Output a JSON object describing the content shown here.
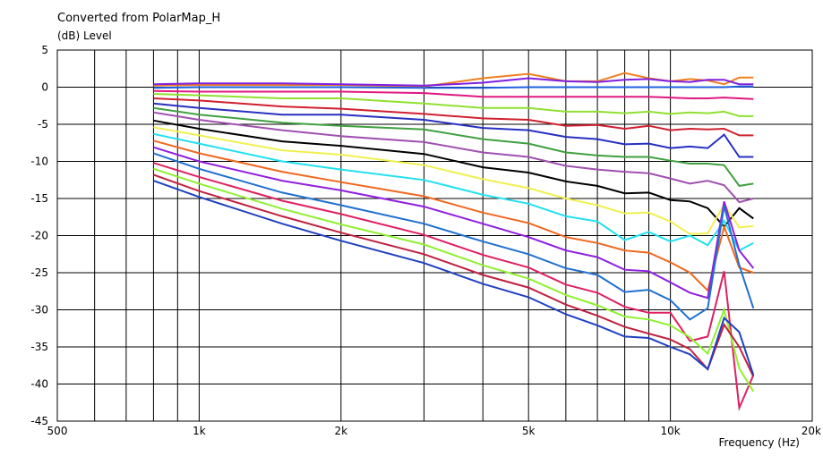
{
  "chart_data": {
    "type": "line",
    "title": "Converted from PolarMap_H",
    "ylabel": "(dB)  Level",
    "xlabel": "Frequency  (Hz)",
    "x_scale": "log",
    "xlim": [
      500,
      20000
    ],
    "ylim": [
      -45,
      5
    ],
    "grid": true,
    "x_ticks": [
      {
        "value": 500,
        "label": "500"
      },
      {
        "value": 1000,
        "label": "1k"
      },
      {
        "value": 2000,
        "label": "2k"
      },
      {
        "value": 5000,
        "label": "5k"
      },
      {
        "value": 10000,
        "label": "10k"
      },
      {
        "value": 20000,
        "label": "20k"
      }
    ],
    "x_minor_ticks": [
      600,
      700,
      800,
      900,
      3000,
      4000,
      6000,
      7000,
      8000,
      9000
    ],
    "y_ticks": [
      5,
      0,
      -5,
      -10,
      -15,
      -20,
      -25,
      -30,
      -35,
      -40,
      -45
    ],
    "series": [
      {
        "color": "#f08020",
        "x": [
          800,
          1000,
          1500,
          2000,
          3000,
          4000,
          5000,
          6000,
          7000,
          8000,
          9000,
          10000,
          11000,
          12000,
          13000,
          14000,
          15000
        ],
        "y": [
          0.2,
          0.3,
          0.3,
          0.3,
          0.1,
          1.2,
          1.8,
          0.8,
          0.8,
          1.9,
          1.2,
          0.8,
          1.1,
          0.9,
          0.4,
          1.3,
          1.3
        ]
      },
      {
        "color": "#8020e0",
        "x": [
          800,
          1000,
          1500,
          2000,
          3000,
          4000,
          5000,
          6000,
          7000,
          8000,
          9000,
          10000,
          11000,
          12000,
          13000,
          14000,
          15000
        ],
        "y": [
          0.4,
          0.5,
          0.5,
          0.4,
          0.2,
          0.6,
          1.2,
          0.8,
          0.7,
          1.0,
          1.1,
          0.8,
          0.7,
          1.0,
          1.0,
          0.4,
          0.4
        ]
      },
      {
        "color": "#2060e0",
        "x": [
          800,
          1000,
          1500,
          2000,
          3000,
          4000,
          5000,
          6000,
          7000,
          8000,
          9000,
          10000,
          11000,
          12000,
          13000,
          14000,
          15000
        ],
        "y": [
          -0.1,
          0.0,
          0.0,
          0.0,
          -0.1,
          -0.1,
          0.0,
          0.0,
          0.0,
          0.0,
          0.0,
          0.0,
          0.0,
          0.0,
          0.0,
          0.1,
          0.1
        ]
      },
      {
        "color": "#e01880",
        "x": [
          800,
          1000,
          1500,
          2000,
          3000,
          4000,
          5000,
          6000,
          7000,
          8000,
          9000,
          10000,
          11000,
          12000,
          13000,
          14000,
          15000
        ],
        "y": [
          -0.5,
          -0.6,
          -0.6,
          -0.6,
          -0.8,
          -1.3,
          -1.3,
          -1.3,
          -1.3,
          -1.3,
          -1.3,
          -1.4,
          -1.5,
          -1.5,
          -1.4,
          -1.5,
          -1.6
        ]
      },
      {
        "color": "#90e030",
        "x": [
          800,
          1000,
          1500,
          2000,
          3000,
          4000,
          5000,
          6000,
          7000,
          8000,
          9000,
          10000,
          11000,
          12000,
          13000,
          14000,
          15000
        ],
        "y": [
          -0.9,
          -1.1,
          -1.5,
          -1.5,
          -2.2,
          -2.8,
          -2.8,
          -3.3,
          -3.3,
          -3.5,
          -3.3,
          -3.6,
          -3.4,
          -3.5,
          -3.3,
          -3.9,
          -3.9
        ]
      },
      {
        "color": "#d02030",
        "x": [
          800,
          1000,
          1500,
          2000,
          3000,
          4000,
          5000,
          6000,
          7000,
          8000,
          9000,
          10000,
          11000,
          12000,
          13000,
          14000,
          15000
        ],
        "y": [
          -1.5,
          -1.8,
          -2.6,
          -2.9,
          -3.6,
          -4.2,
          -4.4,
          -5.2,
          -5.1,
          -5.6,
          -5.2,
          -5.8,
          -5.6,
          -5.7,
          -5.6,
          -6.5,
          -6.5
        ]
      },
      {
        "color": "#2830c0",
        "x": [
          800,
          1000,
          1500,
          2000,
          3000,
          4000,
          5000,
          6000,
          7000,
          8000,
          9000,
          10000,
          11000,
          12000,
          13000,
          14000,
          15000
        ],
        "y": [
          -2.2,
          -2.8,
          -3.7,
          -3.7,
          -4.4,
          -5.5,
          -5.8,
          -6.7,
          -7.0,
          -7.7,
          -7.6,
          -8.2,
          -8.0,
          -8.2,
          -6.4,
          -9.4,
          -9.4
        ]
      },
      {
        "color": "#40a040",
        "x": [
          800,
          1000,
          1500,
          2000,
          3000,
          4000,
          5000,
          6000,
          7000,
          8000,
          9000,
          10000,
          11000,
          12000,
          13000,
          14000,
          15000
        ],
        "y": [
          -2.8,
          -3.7,
          -4.8,
          -5.2,
          -5.7,
          -7.0,
          -7.6,
          -8.8,
          -9.2,
          -9.4,
          -9.4,
          -9.9,
          -10.3,
          -10.3,
          -10.5,
          -13.3,
          -13.0
        ]
      },
      {
        "color": "#a050b0",
        "x": [
          800,
          1000,
          1500,
          2000,
          3000,
          4000,
          5000,
          6000,
          7000,
          8000,
          9000,
          10000,
          11000,
          12000,
          13000,
          14000,
          15000
        ],
        "y": [
          -3.4,
          -4.4,
          -5.8,
          -6.6,
          -7.4,
          -8.8,
          -9.4,
          -10.6,
          -11.1,
          -11.4,
          -11.6,
          -12.3,
          -13.0,
          -12.6,
          -13.2,
          -15.5,
          -15.0
        ]
      },
      {
        "color": "#000000",
        "x": [
          800,
          1000,
          1500,
          2000,
          3000,
          4000,
          5000,
          6000,
          7000,
          8000,
          9000,
          10000,
          11000,
          12000,
          13000,
          14000,
          15000
        ],
        "y": [
          -4.5,
          -5.6,
          -7.3,
          -7.9,
          -9.0,
          -10.8,
          -11.5,
          -12.7,
          -13.3,
          -14.3,
          -14.2,
          -15.2,
          -15.4,
          -16.3,
          -18.8,
          -16.3,
          -17.7
        ]
      },
      {
        "color": "#f0f050",
        "x": [
          800,
          1000,
          1500,
          2000,
          3000,
          4000,
          5000,
          6000,
          7000,
          8000,
          9000,
          10000,
          11000,
          12000,
          13000,
          14000,
          15000
        ],
        "y": [
          -5.4,
          -6.5,
          -8.5,
          -9.1,
          -10.5,
          -12.4,
          -13.6,
          -15.0,
          -15.9,
          -17.0,
          -16.9,
          -18.1,
          -19.8,
          -19.7,
          -15.8,
          -18.9,
          -18.7
        ]
      },
      {
        "color": "#20e0f0",
        "x": [
          800,
          1000,
          1500,
          2000,
          3000,
          4000,
          5000,
          6000,
          7000,
          8000,
          9000,
          10000,
          11000,
          12000,
          13000,
          14000,
          15000
        ],
        "y": [
          -6.3,
          -7.6,
          -10.0,
          -11.1,
          -12.5,
          -14.5,
          -15.7,
          -17.4,
          -18.1,
          -20.6,
          -19.5,
          -20.8,
          -20.0,
          -21.3,
          -18.0,
          -22.0,
          -21.0
        ]
      },
      {
        "color": "#f06820",
        "x": [
          800,
          1000,
          1500,
          2000,
          3000,
          4000,
          5000,
          6000,
          7000,
          8000,
          9000,
          10000,
          11000,
          12000,
          13000,
          14000,
          15000
        ],
        "y": [
          -7.2,
          -8.9,
          -11.4,
          -12.8,
          -14.7,
          -16.9,
          -18.3,
          -20.2,
          -21.0,
          -22.0,
          -22.3,
          -23.6,
          -25.0,
          -27.4,
          -18.8,
          -24.3,
          -25.0
        ]
      },
      {
        "color": "#9020e0",
        "x": [
          800,
          1000,
          1500,
          2000,
          3000,
          4000,
          5000,
          6000,
          7000,
          8000,
          9000,
          10000,
          11000,
          12000,
          13000,
          14000,
          15000
        ],
        "y": [
          -8.1,
          -10.0,
          -12.6,
          -13.9,
          -16.1,
          -18.4,
          -20.2,
          -22.0,
          -22.9,
          -24.6,
          -24.8,
          -26.3,
          -27.7,
          -28.4,
          -15.4,
          -22.0,
          -24.4
        ]
      },
      {
        "color": "#2070d0",
        "x": [
          800,
          1000,
          1500,
          2000,
          3000,
          4000,
          5000,
          6000,
          7000,
          8000,
          9000,
          10000,
          11000,
          12000,
          13000,
          14000,
          15000
        ],
        "y": [
          -8.9,
          -11.0,
          -14.2,
          -15.9,
          -18.4,
          -20.8,
          -22.5,
          -24.4,
          -25.3,
          -27.6,
          -27.3,
          -28.7,
          -31.3,
          -29.8,
          -16.0,
          -24.0,
          -29.8
        ]
      },
      {
        "color": "#e02060",
        "x": [
          800,
          1000,
          1500,
          2000,
          3000,
          4000,
          5000,
          6000,
          7000,
          8000,
          9000,
          10000,
          11000,
          12000,
          13000,
          14000,
          15000
        ],
        "y": [
          -10.2,
          -12.1,
          -15.3,
          -17.1,
          -19.9,
          -22.6,
          -24.3,
          -26.6,
          -27.7,
          -29.6,
          -30.4,
          -30.4,
          -34.2,
          -33.6,
          -24.8,
          -43.2,
          -38.8
        ]
      },
      {
        "color": "#90f030",
        "x": [
          800,
          1000,
          1500,
          2000,
          3000,
          4000,
          5000,
          6000,
          7000,
          8000,
          9000,
          10000,
          11000,
          12000,
          13000,
          14000,
          15000
        ],
        "y": [
          -11.0,
          -13.0,
          -16.4,
          -18.5,
          -21.2,
          -24.0,
          -25.8,
          -28.0,
          -29.4,
          -30.9,
          -31.3,
          -32.1,
          -33.7,
          -35.9,
          -30.0,
          -37.9,
          -41.0
        ]
      },
      {
        "color": "#c02040",
        "x": [
          800,
          1000,
          1500,
          2000,
          3000,
          4000,
          5000,
          6000,
          7000,
          8000,
          9000,
          10000,
          11000,
          12000,
          13000,
          14000,
          15000
        ],
        "y": [
          -11.8,
          -14.0,
          -17.4,
          -19.6,
          -22.5,
          -25.3,
          -27.0,
          -29.3,
          -30.8,
          -32.3,
          -33.2,
          -34.0,
          -35.3,
          -38.0,
          -32.0,
          -35.0,
          -39.0
        ]
      },
      {
        "color": "#2040c0",
        "x": [
          800,
          1000,
          1500,
          2000,
          3000,
          4000,
          5000,
          6000,
          7000,
          8000,
          9000,
          10000,
          11000,
          12000,
          13000,
          14000,
          15000
        ],
        "y": [
          -12.6,
          -14.8,
          -18.4,
          -20.7,
          -23.7,
          -26.5,
          -28.3,
          -30.6,
          -32.1,
          -33.6,
          -33.8,
          -35.0,
          -36.0,
          -38.0,
          -31.1,
          -33.0,
          -38.8
        ]
      }
    ]
  }
}
